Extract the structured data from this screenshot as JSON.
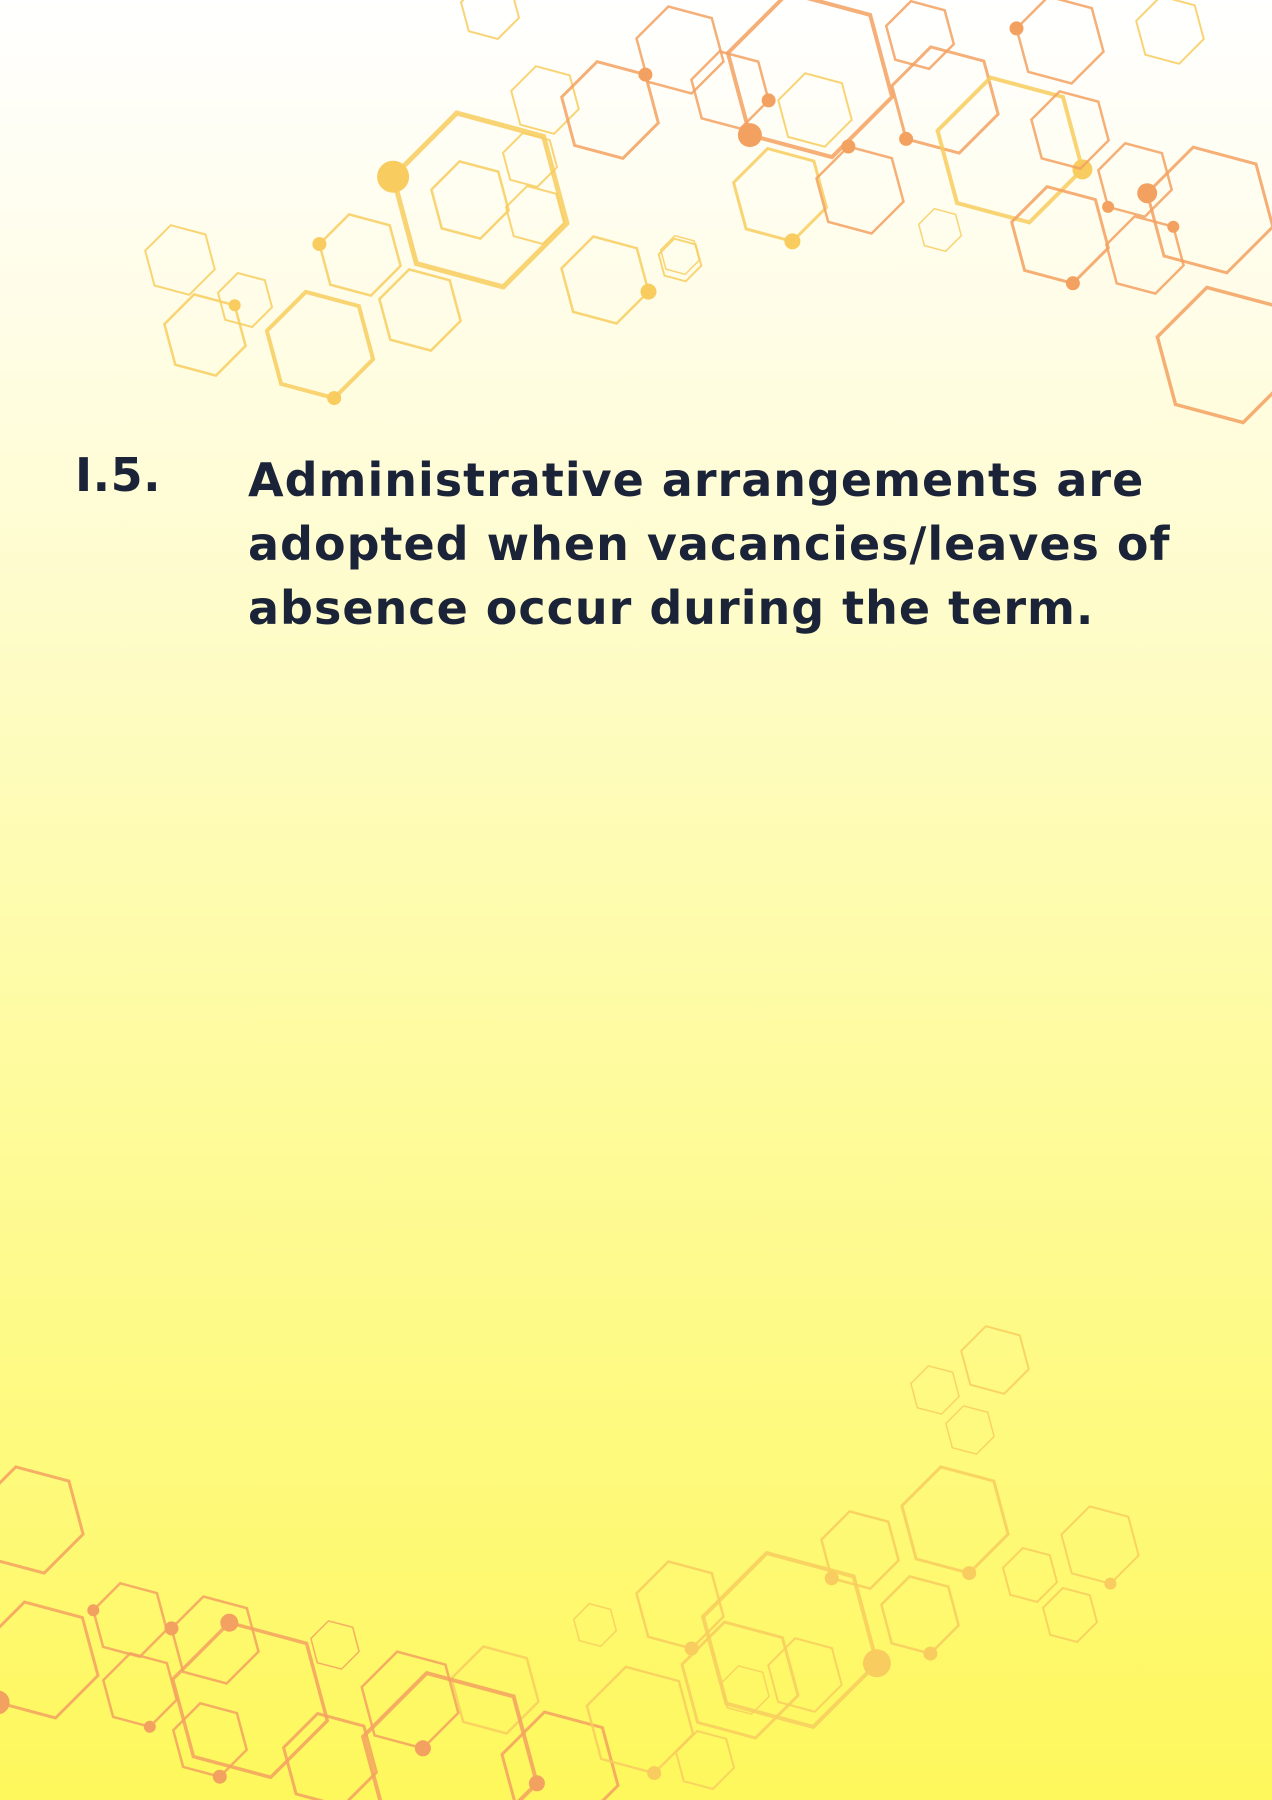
{
  "item": {
    "number": "I.5.",
    "text_lines": [
      "Administrative arrangements are",
      "adopted when vacancies/leaves of",
      "absence occur during the term."
    ]
  },
  "colors": {
    "text": "#1b2338",
    "background_top": "#ffffff",
    "background_bottom": "#fef85c",
    "hex_orange": "#f3a160",
    "hex_yellow": "#f8cc5e"
  }
}
